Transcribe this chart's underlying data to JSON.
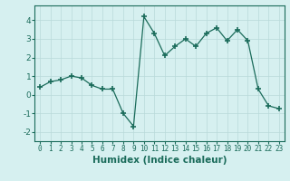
{
  "x": [
    0,
    1,
    2,
    3,
    4,
    5,
    6,
    7,
    8,
    9,
    10,
    11,
    12,
    13,
    14,
    15,
    16,
    17,
    18,
    19,
    20,
    21,
    22,
    23
  ],
  "y": [
    0.4,
    0.7,
    0.8,
    1.0,
    0.9,
    0.5,
    0.3,
    0.3,
    -1.0,
    -1.7,
    4.2,
    3.3,
    2.1,
    2.6,
    3.0,
    2.6,
    3.3,
    3.6,
    2.9,
    3.5,
    2.9,
    0.3,
    -0.6,
    -0.75
  ],
  "line_color": "#1a6b5a",
  "marker": "+",
  "marker_size": 4,
  "background_color": "#d6f0f0",
  "grid_color": "#b8dada",
  "xlabel": "Humidex (Indice chaleur)",
  "ylim": [
    -2.5,
    4.8
  ],
  "xlim": [
    -0.5,
    23.5
  ],
  "yticks": [
    -2,
    -1,
    0,
    1,
    2,
    3,
    4
  ],
  "xticks": [
    0,
    1,
    2,
    3,
    4,
    5,
    6,
    7,
    8,
    9,
    10,
    11,
    12,
    13,
    14,
    15,
    16,
    17,
    18,
    19,
    20,
    21,
    22,
    23
  ],
  "tick_label_fontsize": 5.5,
  "xlabel_fontsize": 7.5,
  "ytick_label_fontsize": 6.5
}
